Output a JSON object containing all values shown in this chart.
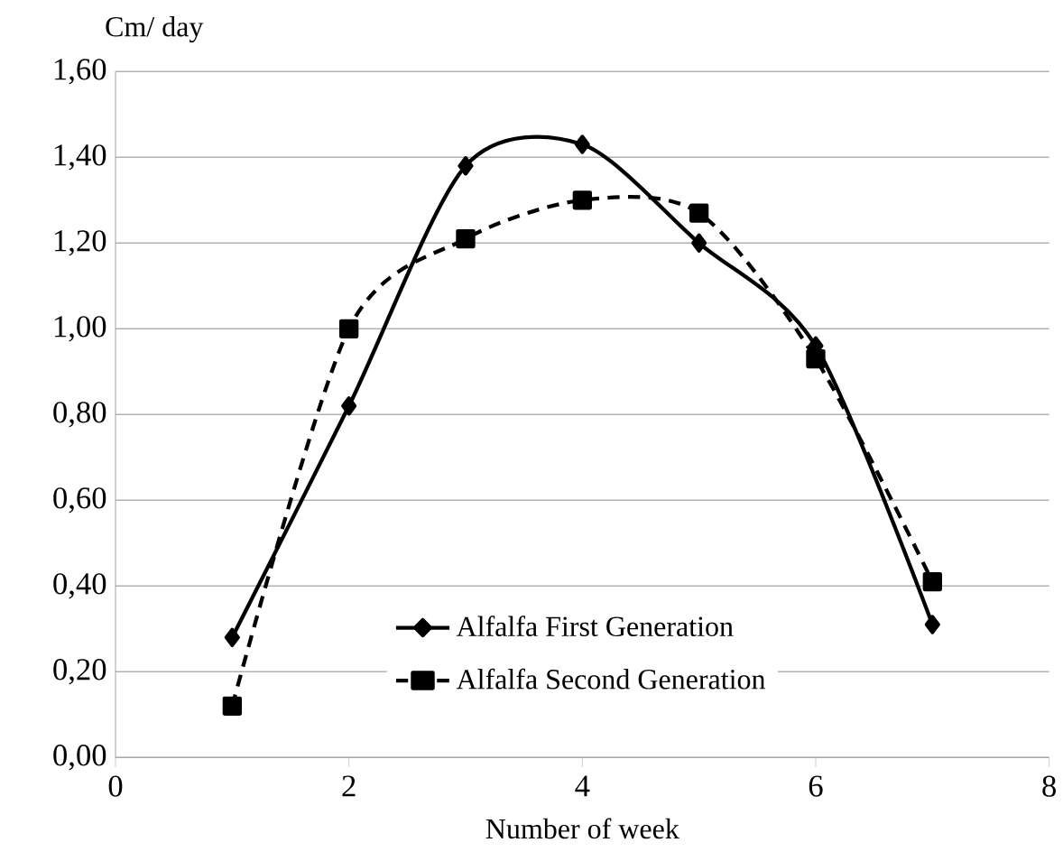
{
  "chart_data": {
    "type": "line",
    "xlabel": "Number of week",
    "ylabel": "Cm/ day",
    "x": [
      1,
      2,
      3,
      4,
      5,
      6,
      7
    ],
    "series": [
      {
        "name": "Alfalfa First Generation",
        "color": "#000000",
        "values": [
          0.28,
          0.82,
          1.38,
          1.43,
          1.2,
          0.96,
          0.31
        ],
        "marker": "diamond",
        "line_style": "solid"
      },
      {
        "name": "Alfalfa Second Generation",
        "color": "#000000",
        "values": [
          0.12,
          1.0,
          1.21,
          1.3,
          1.27,
          0.93,
          0.41
        ],
        "marker": "square",
        "line_style": "dashed"
      }
    ],
    "xlim": [
      0,
      8
    ],
    "xticks": [
      0,
      2,
      4,
      6,
      8
    ],
    "ylim": [
      0,
      1.6
    ],
    "yticks": [
      {
        "value": 0,
        "label": "0,00"
      },
      {
        "value": 0.2,
        "label": "0,20"
      },
      {
        "value": 0.4,
        "label": "0,40"
      },
      {
        "value": 0.6,
        "label": "0,60"
      },
      {
        "value": 0.8,
        "label": "0,80"
      },
      {
        "value": 1.0,
        "label": "1,00"
      },
      {
        "value": 1.2,
        "label": "1,20"
      },
      {
        "value": 1.4,
        "label": "1,40"
      },
      {
        "value": 1.6,
        "label": "1,60"
      }
    ],
    "grid": "y",
    "legend": "bottom"
  }
}
